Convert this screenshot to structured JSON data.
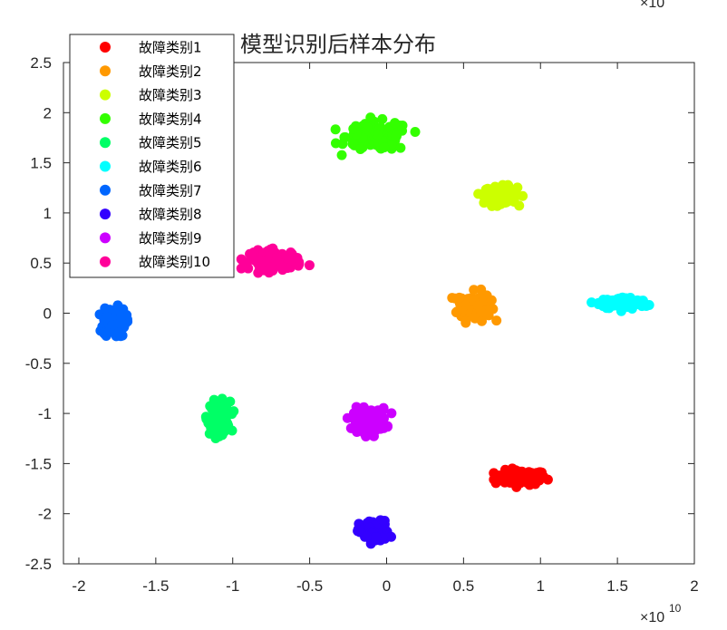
{
  "chart_data": {
    "type": "scatter",
    "title": "模型识别后样本分布",
    "xlabel": "",
    "ylabel": "",
    "x_exponent_label": "×10",
    "x_exponent": "10",
    "y_exponent_label": "×10",
    "xlim": [
      -2.1,
      2.0
    ],
    "ylim": [
      -2.5,
      2.5
    ],
    "x_scale": 10000000000.0,
    "y_scale": 10000000000.0,
    "x_ticks": [
      "-2",
      "-1.5",
      "-1",
      "-0.5",
      "0",
      "0.5",
      "1",
      "1.5",
      "2"
    ],
    "y_ticks": [
      "-2.5",
      "-2",
      "-1.5",
      "-1",
      "-0.5",
      "0",
      "0.5",
      "1",
      "1.5",
      "2",
      "2.5"
    ],
    "grid": false,
    "legend_position": "top-left",
    "series": [
      {
        "name": "故障类别1",
        "color": "#ff0000",
        "center": [
          0.87,
          -1.64
        ],
        "spread": [
          0.14,
          0.06
        ],
        "count": 110
      },
      {
        "name": "故障类别2",
        "color": "#ff9900",
        "center": [
          0.57,
          0.07
        ],
        "spread": [
          0.09,
          0.12
        ],
        "count": 110
      },
      {
        "name": "故障类别3",
        "color": "#ccff00",
        "center": [
          0.74,
          1.18
        ],
        "spread": [
          0.09,
          0.07
        ],
        "count": 110
      },
      {
        "name": "故障类别4",
        "color": "#33ff00",
        "center": [
          -0.06,
          1.76
        ],
        "spread": [
          0.17,
          0.12
        ],
        "count": 140
      },
      {
        "name": "故障类别5",
        "color": "#00ff66",
        "center": [
          -1.09,
          -1.04
        ],
        "spread": [
          0.06,
          0.13
        ],
        "count": 110
      },
      {
        "name": "故障类别6",
        "color": "#00ffff",
        "center": [
          1.54,
          0.1
        ],
        "spread": [
          0.13,
          0.05
        ],
        "count": 110
      },
      {
        "name": "故障类别7",
        "color": "#0066ff",
        "center": [
          -1.77,
          -0.09
        ],
        "spread": [
          0.06,
          0.12
        ],
        "count": 110
      },
      {
        "name": "故障类别8",
        "color": "#3300ff",
        "center": [
          -0.08,
          -2.18
        ],
        "spread": [
          0.08,
          0.09
        ],
        "count": 110
      },
      {
        "name": "故障类别9",
        "color": "#cc00ff",
        "center": [
          -0.11,
          -1.07
        ],
        "spread": [
          0.09,
          0.1
        ],
        "count": 110
      },
      {
        "name": "故障类别10",
        "color": "#ff0099",
        "center": [
          -0.72,
          0.53
        ],
        "spread": [
          0.14,
          0.08
        ],
        "count": 110
      }
    ]
  }
}
